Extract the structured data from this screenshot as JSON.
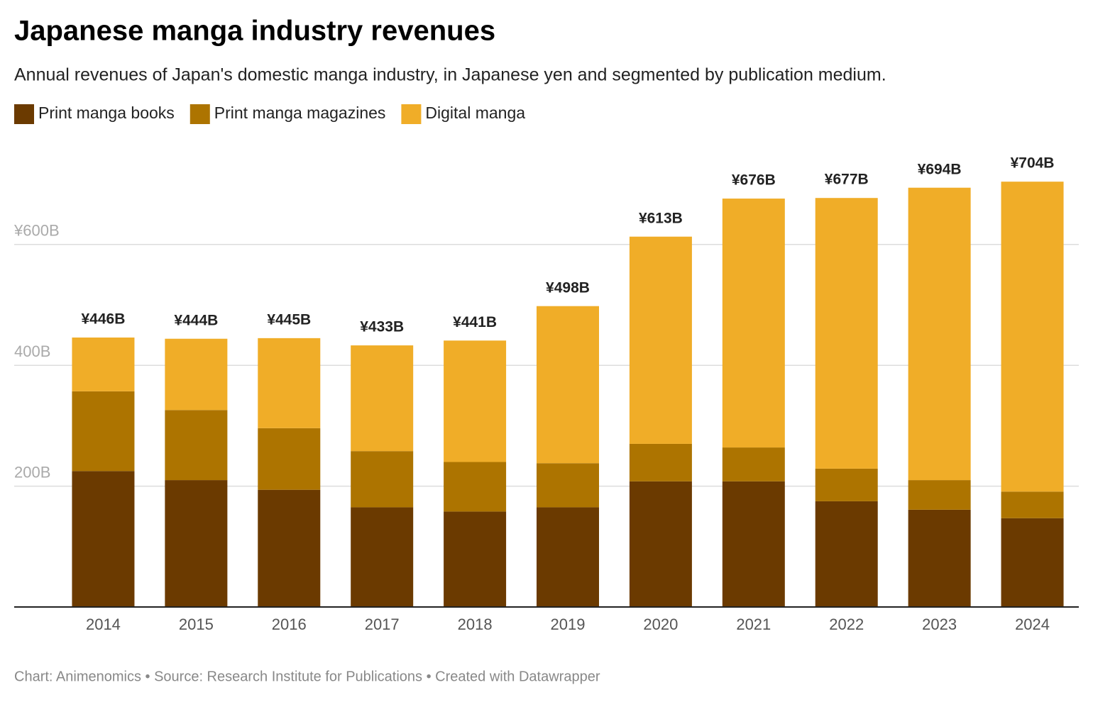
{
  "chart_data": {
    "type": "stacked_bar",
    "title": "Japanese manga industry revenues",
    "subtitle": "Annual revenues of Japan's domestic manga industry, in Japanese yen and segmented by publication medium.",
    "footer": "Chart: Animenomics • Source: Research Institute for Publications • Created with Datawrapper",
    "categories": [
      "2014",
      "2015",
      "2016",
      "2017",
      "2018",
      "2019",
      "2020",
      "2021",
      "2022",
      "2023",
      "2024"
    ],
    "series": [
      {
        "name": "Print manga books",
        "color": "#6b3a00",
        "values": [
          225,
          210,
          194,
          165,
          158,
          165,
          208,
          208,
          175,
          161,
          147
        ]
      },
      {
        "name": "Print manga magazines",
        "color": "#ad7400",
        "values": [
          132,
          116,
          102,
          93,
          82,
          73,
          62,
          56,
          54,
          49,
          44
        ]
      },
      {
        "name": "Digital manga",
        "color": "#f0ad28",
        "values": [
          89,
          118,
          149,
          175,
          201,
          260,
          343,
          412,
          448,
          484,
          513
        ]
      }
    ],
    "totals": {
      "values": [
        446,
        444,
        445,
        433,
        441,
        498,
        613,
        676,
        677,
        694,
        704
      ],
      "value_labels": [
        "¥446B",
        "¥444B",
        "¥445B",
        "¥433B",
        "¥441B",
        "¥498B",
        "¥613B",
        "¥676B",
        "¥677B",
        "¥694B",
        "¥704B"
      ]
    },
    "ylim": [
      0,
      750
    ],
    "yticks": [
      {
        "value": 200,
        "label": "200B"
      },
      {
        "value": 400,
        "label": "400B"
      },
      {
        "value": 600,
        "label": "¥600B"
      }
    ],
    "grid": true
  }
}
